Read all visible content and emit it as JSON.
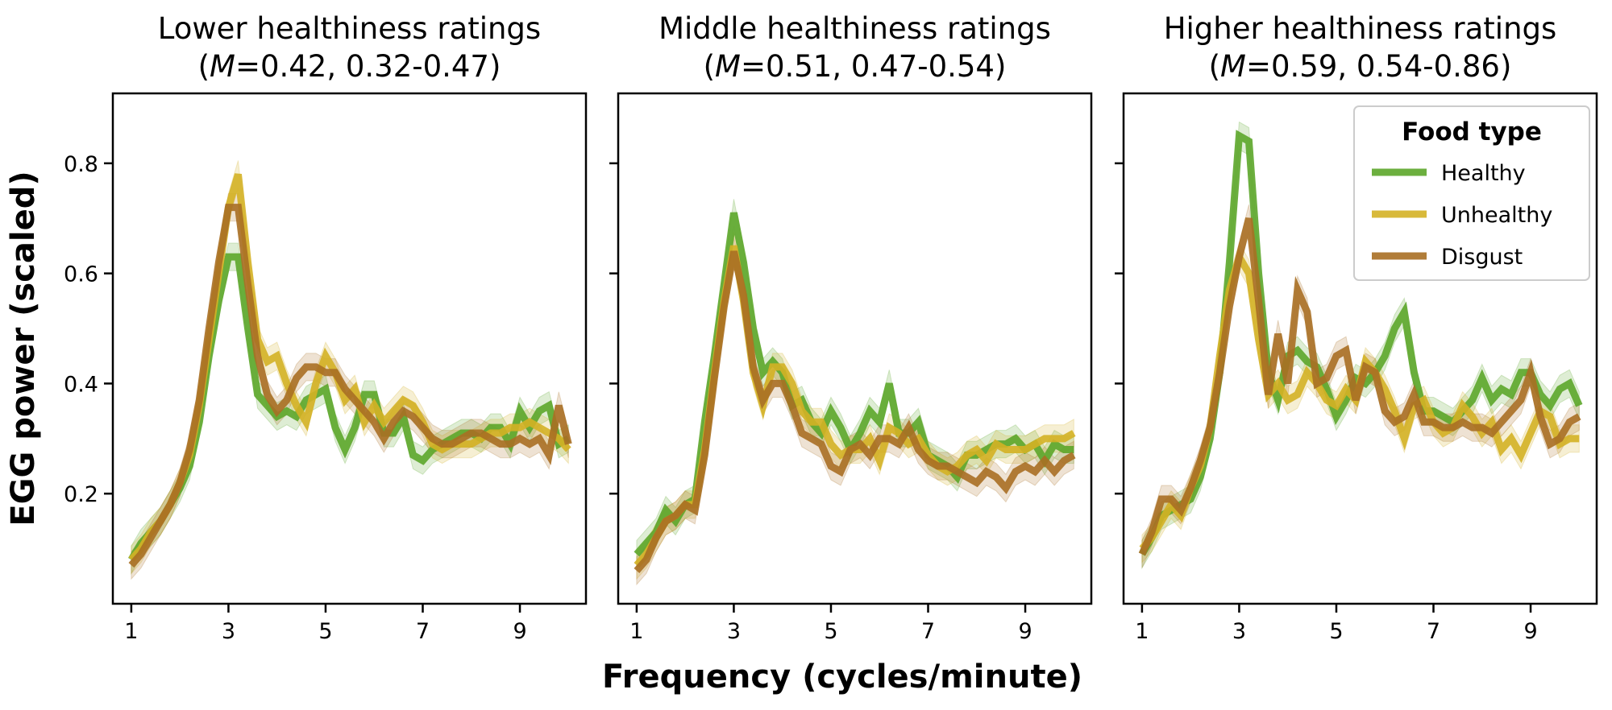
{
  "chart_data": {
    "type": "line",
    "xlabel": "Frequency (cycles/minute)",
    "ylabel": "EGG power (scaled)",
    "xlim": [
      0.62,
      10.36
    ],
    "ylim": [
      0.0,
      0.927
    ],
    "xticks": [
      1,
      3,
      5,
      7,
      9
    ],
    "yticks": [
      0.2,
      0.4,
      0.6,
      0.8
    ],
    "legend": {
      "title": "Food type",
      "placement": "top-right of third panel",
      "entries": [
        "Healthy",
        "Unhealthy",
        "Disgust"
      ]
    },
    "colors": {
      "Healthy": "#5ca62a",
      "Unhealthy": "#d4b125",
      "Disgust": "#a86f24"
    },
    "x": [
      1.0,
      1.2,
      1.4,
      1.6,
      1.8,
      2.0,
      2.2,
      2.4,
      2.6,
      2.8,
      3.0,
      3.2,
      3.4,
      3.6,
      3.8,
      4.0,
      4.2,
      4.4,
      4.6,
      4.8,
      5.0,
      5.2,
      5.4,
      5.6,
      5.8,
      6.0,
      6.2,
      6.4,
      6.6,
      6.8,
      7.0,
      7.2,
      7.4,
      7.6,
      7.8,
      8.0,
      8.2,
      8.4,
      8.6,
      8.8,
      9.0,
      9.2,
      9.4,
      9.6,
      9.8,
      10.0
    ],
    "panels": [
      {
        "title": "Lower healthiness ratings",
        "m_label": "M",
        "m_value": "=0.42, 0.32-0.47)",
        "series": [
          {
            "name": "Healthy",
            "values": [
              0.08,
              0.11,
              0.13,
              0.15,
              0.18,
              0.21,
              0.25,
              0.33,
              0.45,
              0.55,
              0.63,
              0.63,
              0.5,
              0.38,
              0.36,
              0.34,
              0.35,
              0.34,
              0.37,
              0.38,
              0.39,
              0.32,
              0.28,
              0.32,
              0.38,
              0.38,
              0.31,
              0.31,
              0.34,
              0.27,
              0.26,
              0.28,
              0.29,
              0.3,
              0.31,
              0.31,
              0.3,
              0.32,
              0.32,
              0.29,
              0.35,
              0.32,
              0.35,
              0.36,
              0.29,
              0.3
            ]
          },
          {
            "name": "Unhealthy",
            "values": [
              0.08,
              0.1,
              0.13,
              0.15,
              0.18,
              0.22,
              0.27,
              0.36,
              0.48,
              0.6,
              0.72,
              0.78,
              0.62,
              0.48,
              0.44,
              0.45,
              0.4,
              0.36,
              0.33,
              0.4,
              0.45,
              0.42,
              0.37,
              0.39,
              0.33,
              0.36,
              0.33,
              0.35,
              0.37,
              0.36,
              0.33,
              0.29,
              0.28,
              0.29,
              0.29,
              0.29,
              0.3,
              0.31,
              0.31,
              0.32,
              0.32,
              0.33,
              0.32,
              0.31,
              0.3,
              0.28
            ]
          },
          {
            "name": "Disgust",
            "values": [
              0.07,
              0.09,
              0.12,
              0.15,
              0.18,
              0.22,
              0.28,
              0.37,
              0.5,
              0.62,
              0.72,
              0.72,
              0.58,
              0.45,
              0.38,
              0.35,
              0.37,
              0.41,
              0.43,
              0.43,
              0.42,
              0.42,
              0.39,
              0.37,
              0.35,
              0.33,
              0.3,
              0.33,
              0.35,
              0.34,
              0.32,
              0.3,
              0.29,
              0.29,
              0.3,
              0.31,
              0.31,
              0.3,
              0.29,
              0.29,
              0.3,
              0.29,
              0.3,
              0.27,
              0.36,
              0.29
            ]
          }
        ]
      },
      {
        "title": "Middle healthiness ratings",
        "m_label": "M",
        "m_value": "=0.51, 0.47-0.54)",
        "series": [
          {
            "name": "Healthy",
            "values": [
              0.09,
              0.11,
              0.13,
              0.17,
              0.15,
              0.18,
              0.19,
              0.33,
              0.45,
              0.58,
              0.71,
              0.62,
              0.5,
              0.42,
              0.44,
              0.42,
              0.36,
              0.37,
              0.33,
              0.31,
              0.35,
              0.32,
              0.28,
              0.31,
              0.35,
              0.33,
              0.4,
              0.31,
              0.31,
              0.33,
              0.27,
              0.26,
              0.25,
              0.23,
              0.27,
              0.27,
              0.28,
              0.29,
              0.29,
              0.3,
              0.28,
              0.29,
              0.26,
              0.29,
              0.28,
              0.28
            ]
          },
          {
            "name": "Unhealthy",
            "values": [
              0.07,
              0.09,
              0.12,
              0.15,
              0.16,
              0.18,
              0.18,
              0.28,
              0.42,
              0.55,
              0.65,
              0.55,
              0.42,
              0.36,
              0.43,
              0.43,
              0.4,
              0.35,
              0.33,
              0.33,
              0.29,
              0.27,
              0.28,
              0.28,
              0.3,
              0.26,
              0.32,
              0.31,
              0.29,
              0.3,
              0.27,
              0.25,
              0.24,
              0.25,
              0.27,
              0.28,
              0.26,
              0.29,
              0.28,
              0.28,
              0.28,
              0.29,
              0.3,
              0.3,
              0.3,
              0.31
            ]
          },
          {
            "name": "Disgust",
            "values": [
              0.06,
              0.08,
              0.12,
              0.15,
              0.16,
              0.18,
              0.17,
              0.27,
              0.41,
              0.54,
              0.64,
              0.56,
              0.43,
              0.37,
              0.4,
              0.4,
              0.36,
              0.31,
              0.3,
              0.29,
              0.25,
              0.24,
              0.28,
              0.29,
              0.27,
              0.3,
              0.3,
              0.29,
              0.32,
              0.28,
              0.26,
              0.25,
              0.25,
              0.24,
              0.23,
              0.22,
              0.24,
              0.23,
              0.21,
              0.24,
              0.25,
              0.24,
              0.26,
              0.24,
              0.26,
              0.27
            ]
          }
        ]
      },
      {
        "title": "Higher healthiness ratings",
        "m_label": "M",
        "m_value": "=0.59, 0.54-0.86)",
        "series": [
          {
            "name": "Healthy",
            "values": [
              0.09,
              0.12,
              0.16,
              0.17,
              0.18,
              0.19,
              0.23,
              0.3,
              0.42,
              0.62,
              0.85,
              0.84,
              0.6,
              0.42,
              0.37,
              0.45,
              0.46,
              0.44,
              0.43,
              0.39,
              0.34,
              0.37,
              0.41,
              0.4,
              0.42,
              0.45,
              0.5,
              0.53,
              0.42,
              0.35,
              0.35,
              0.34,
              0.33,
              0.35,
              0.37,
              0.41,
              0.37,
              0.39,
              0.38,
              0.42,
              0.42,
              0.38,
              0.36,
              0.39,
              0.4,
              0.36
            ]
          },
          {
            "name": "Unhealthy",
            "values": [
              0.1,
              0.12,
              0.15,
              0.18,
              0.16,
              0.21,
              0.25,
              0.32,
              0.45,
              0.57,
              0.63,
              0.6,
              0.48,
              0.38,
              0.4,
              0.37,
              0.38,
              0.42,
              0.4,
              0.37,
              0.36,
              0.39,
              0.37,
              0.44,
              0.42,
              0.39,
              0.35,
              0.3,
              0.36,
              0.37,
              0.33,
              0.31,
              0.32,
              0.36,
              0.34,
              0.31,
              0.33,
              0.28,
              0.3,
              0.27,
              0.31,
              0.35,
              0.34,
              0.29,
              0.3,
              0.3
            ]
          },
          {
            "name": "Disgust",
            "values": [
              0.09,
              0.13,
              0.19,
              0.19,
              0.17,
              0.21,
              0.26,
              0.32,
              0.42,
              0.54,
              0.63,
              0.7,
              0.55,
              0.38,
              0.49,
              0.4,
              0.57,
              0.53,
              0.4,
              0.41,
              0.45,
              0.46,
              0.37,
              0.43,
              0.42,
              0.35,
              0.33,
              0.34,
              0.38,
              0.33,
              0.33,
              0.32,
              0.32,
              0.33,
              0.32,
              0.32,
              0.31,
              0.33,
              0.35,
              0.37,
              0.42,
              0.34,
              0.29,
              0.3,
              0.33,
              0.34
            ]
          }
        ]
      }
    ]
  }
}
